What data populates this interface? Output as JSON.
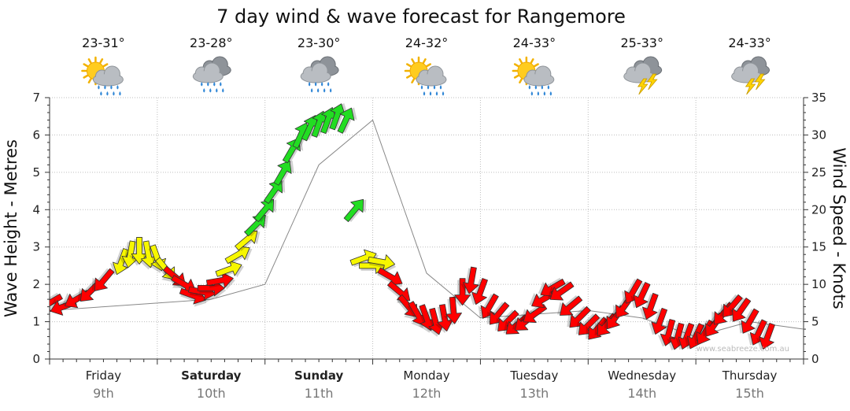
{
  "chart_data": {
    "type": "line",
    "title": "7 day wind & wave forecast for Rangemore",
    "ylabel_left": "Wave Height - Metres",
    "ylabel_right": "Wind Speed - Knots",
    "ylim_left": [
      0,
      7
    ],
    "ylim_right": [
      0,
      35
    ],
    "yticks_left": [
      "0",
      "1",
      "2",
      "3",
      "4",
      "5",
      "6",
      "7"
    ],
    "yticks_right": [
      "0",
      "5",
      "10",
      "15",
      "20",
      "25",
      "30",
      "35"
    ],
    "grid": true,
    "watermark": "www.seabreeze.com.au",
    "days": [
      {
        "name": "Friday",
        "date": "9th",
        "bold": false,
        "temp": "23-31°",
        "icon": "sun-cloud-rain-icon"
      },
      {
        "name": "Saturday",
        "date": "10th",
        "bold": true,
        "temp": "23-28°",
        "icon": "heavy-rain-icon"
      },
      {
        "name": "Sunday",
        "date": "11th",
        "bold": true,
        "temp": "23-30°",
        "icon": "heavy-rain-icon"
      },
      {
        "name": "Monday",
        "date": "12th",
        "bold": false,
        "temp": "24-32°",
        "icon": "sun-cloud-rain-icon"
      },
      {
        "name": "Tuesday",
        "date": "13th",
        "bold": false,
        "temp": "24-33°",
        "icon": "sun-cloud-rain-icon"
      },
      {
        "name": "Wednesday",
        "date": "14th",
        "bold": false,
        "temp": "25-33°",
        "icon": "thunderstorm-icon"
      },
      {
        "name": "Thursday",
        "date": "15th",
        "bold": false,
        "temp": "24-33°",
        "icon": "thunderstorm-icon"
      }
    ],
    "wave_x_hours": [
      0,
      12,
      24,
      36,
      48,
      60,
      72,
      84,
      96,
      108,
      120,
      132,
      144,
      156,
      168
    ],
    "wave_series": {
      "name": "Wave Height",
      "values": [
        1.3,
        1.4,
        1.5,
        1.6,
        2.0,
        5.2,
        6.4,
        2.3,
        1.1,
        1.2,
        1.3,
        1.1,
        0.6,
        1.0,
        0.8
      ]
    },
    "wind_series": {
      "name": "Wind Speed",
      "points": [
        [
          0,
          7.5,
          60
        ],
        [
          3,
          7,
          70
        ],
        [
          6,
          8,
          60
        ],
        [
          9,
          9,
          45
        ],
        [
          12,
          10.5,
          40
        ],
        [
          16,
          13,
          20
        ],
        [
          18,
          14,
          10
        ],
        [
          20,
          14.5,
          0
        ],
        [
          22,
          14,
          350
        ],
        [
          24,
          13.5,
          340
        ],
        [
          26,
          12,
          320
        ],
        [
          28,
          11,
          310
        ],
        [
          30,
          10,
          300
        ],
        [
          32,
          8.5,
          290
        ],
        [
          34,
          9,
          280
        ],
        [
          36,
          9.5,
          270
        ],
        [
          38,
          10.5,
          260
        ],
        [
          40,
          12,
          250
        ],
        [
          42,
          14,
          240
        ],
        [
          44,
          16,
          230
        ],
        [
          46,
          18,
          225
        ],
        [
          48,
          20,
          220
        ],
        [
          50,
          22.5,
          215
        ],
        [
          52,
          25,
          210
        ],
        [
          54,
          28,
          210
        ],
        [
          56,
          30,
          205
        ],
        [
          58,
          31,
          205
        ],
        [
          60,
          31.5,
          200
        ],
        [
          62,
          32,
          200
        ],
        [
          64,
          32.5,
          200
        ],
        [
          66,
          32,
          205
        ],
        [
          68,
          20,
          220
        ],
        [
          70,
          13.5,
          250
        ],
        [
          72,
          12.5,
          270
        ],
        [
          74,
          13,
          280
        ],
        [
          76,
          11,
          300
        ],
        [
          78,
          9,
          310
        ],
        [
          80,
          7,
          320
        ],
        [
          82,
          6,
          330
        ],
        [
          84,
          5.5,
          340
        ],
        [
          86,
          5,
          345
        ],
        [
          88,
          5.5,
          350
        ],
        [
          90,
          6.5,
          355
        ],
        [
          92,
          9,
          0
        ],
        [
          94,
          10.5,
          10
        ],
        [
          96,
          9,
          20
        ],
        [
          98,
          7,
          30
        ],
        [
          100,
          6,
          40
        ],
        [
          102,
          5,
          45
        ],
        [
          104,
          4.5,
          50
        ],
        [
          106,
          5,
          50
        ],
        [
          108,
          6,
          55
        ],
        [
          110,
          8,
          60
        ],
        [
          112,
          9.5,
          60
        ],
        [
          114,
          9,
          55
        ],
        [
          116,
          7,
          50
        ],
        [
          118,
          5.5,
          45
        ],
        [
          120,
          4.5,
          45
        ],
        [
          122,
          4,
          40
        ],
        [
          124,
          4.5,
          40
        ],
        [
          126,
          5.5,
          35
        ],
        [
          128,
          7,
          35
        ],
        [
          130,
          9,
          30
        ],
        [
          132,
          8.5,
          25
        ],
        [
          134,
          7,
          20
        ],
        [
          136,
          5,
          20
        ],
        [
          138,
          3.5,
          15
        ],
        [
          140,
          3,
          15
        ],
        [
          142,
          3,
          20
        ],
        [
          144,
          3,
          25
        ],
        [
          146,
          3.5,
          30
        ],
        [
          148,
          4.5,
          35
        ],
        [
          150,
          6,
          40
        ],
        [
          152,
          7,
          40
        ],
        [
          154,
          6.5,
          35
        ],
        [
          156,
          5,
          30
        ],
        [
          158,
          3.5,
          25
        ],
        [
          160,
          3,
          20
        ]
      ]
    }
  }
}
